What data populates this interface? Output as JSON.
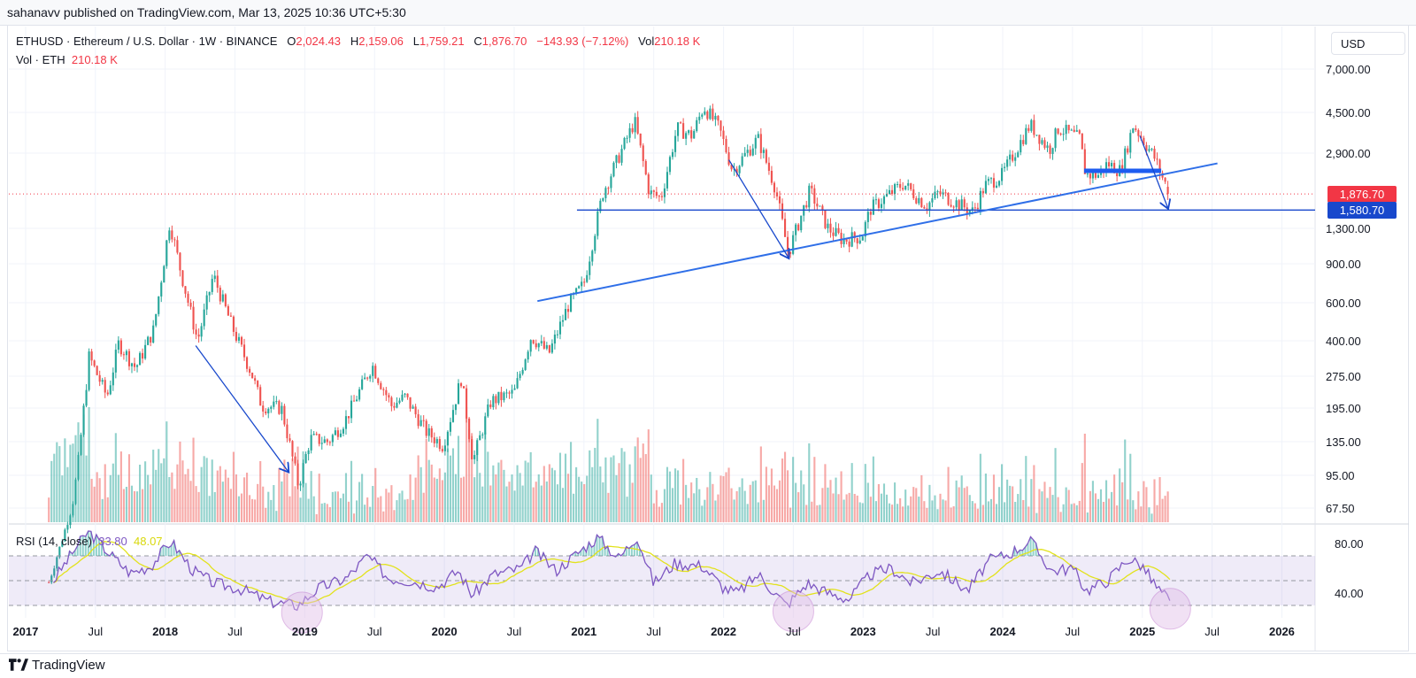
{
  "header": {
    "published_line": "sahanavv published on TradingView.com, Mar 13, 2025 10:36 UTC+5:30"
  },
  "legend": {
    "symbol": "ETHUSD · Ethereum / U.S. Dollar · 1W · BINANCE",
    "o_label": "O",
    "o_value": "2,024.43",
    "h_label": "H",
    "h_value": "2,159.06",
    "l_label": "L",
    "l_value": "1,759.21",
    "c_label": "C",
    "c_value": "1,876.70",
    "change": "−143.93 (−7.12%)",
    "vol_label": "Vol",
    "vol_value": "210.18 K",
    "vol_line_label": "Vol · ETH",
    "vol_line_value": "210.18 K"
  },
  "rsi_legend": {
    "label": "RSI (14, close)",
    "value": "33.80",
    "ma_value": "48.07"
  },
  "currency": "USD",
  "price_badges": {
    "last": "1,876.70",
    "level": "1,580.70"
  },
  "footer": {
    "brand": "TradingView"
  },
  "colors": {
    "up": "#26a69a",
    "down": "#ef5350",
    "trend": "#2962ff",
    "level": "#1848cc",
    "rsi": "#7e57c2",
    "rsi_ma": "#e2e21c",
    "badge_last": "#f23645",
    "badge_level": "#1848cc"
  },
  "chart_data": [
    {
      "type": "candlestick",
      "title": "ETHUSD · Ethereum / U.S. Dollar · 1W · BINANCE",
      "scale": "log",
      "y_ticks": [
        "7,000.00",
        "4,500.00",
        "2,900.00",
        "1,300.00",
        "900.00",
        "600.00",
        "400.00",
        "275.00",
        "195.00",
        "135.00",
        "95.00",
        "67.50"
      ],
      "x_ticks": [
        "2017",
        "Jul",
        "2018",
        "Jul",
        "2019",
        "Jul",
        "2020",
        "Jul",
        "2021",
        "Jul",
        "2022",
        "Jul",
        "2023",
        "Jul",
        "2024",
        "Jul",
        "2025",
        "Jul",
        "2026"
      ],
      "series": [
        {
          "name": "ETHUSD",
          "anchors": [
            [
              "2017-03-01",
              15
            ],
            [
              "2017-05-15",
              100
            ],
            [
              "2017-06-15",
              340
            ],
            [
              "2017-08-01",
              220
            ],
            [
              "2017-09-01",
              390
            ],
            [
              "2017-10-15",
              300
            ],
            [
              "2017-12-01",
              450
            ],
            [
              "2018-01-13",
              1400
            ],
            [
              "2018-02-10",
              850
            ],
            [
              "2018-03-25",
              400
            ],
            [
              "2018-05-05",
              800
            ],
            [
              "2018-06-25",
              460
            ],
            [
              "2018-08-15",
              280
            ],
            [
              "2018-09-10",
              200
            ],
            [
              "2018-11-01",
              195
            ],
            [
              "2018-12-15",
              85
            ],
            [
              "2019-01-15",
              140
            ],
            [
              "2019-03-01",
              135
            ],
            [
              "2019-04-15",
              170
            ],
            [
              "2019-06-25",
              310
            ],
            [
              "2019-08-15",
              200
            ],
            [
              "2019-09-20",
              220
            ],
            [
              "2019-11-15",
              150
            ],
            [
              "2019-12-28",
              130
            ],
            [
              "2020-02-15",
              270
            ],
            [
              "2020-03-15",
              110
            ],
            [
              "2020-05-01",
              210
            ],
            [
              "2020-07-01",
              230
            ],
            [
              "2020-08-15",
              420
            ],
            [
              "2020-10-01",
              350
            ],
            [
              "2020-11-20",
              580
            ],
            [
              "2020-12-31",
              730
            ],
            [
              "2021-02-20",
              1900
            ],
            [
              "2021-05-12",
              4100
            ],
            [
              "2021-06-20",
              1900
            ],
            [
              "2021-07-20",
              1800
            ],
            [
              "2021-09-01",
              3800
            ],
            [
              "2021-10-10",
              3500
            ],
            [
              "2021-11-10",
              4800
            ],
            [
              "2021-12-20",
              3800
            ],
            [
              "2022-01-25",
              2400
            ],
            [
              "2022-03-30",
              3400
            ],
            [
              "2022-05-15",
              2000
            ],
            [
              "2022-06-18",
              1000
            ],
            [
              "2022-08-14",
              1950
            ],
            [
              "2022-10-01",
              1300
            ],
            [
              "2022-11-10",
              1150
            ],
            [
              "2022-12-28",
              1200
            ],
            [
              "2023-01-20",
              1600
            ],
            [
              "2023-04-15",
              2100
            ],
            [
              "2023-06-15",
              1650
            ],
            [
              "2023-07-15",
              1900
            ],
            [
              "2023-10-15",
              1550
            ],
            [
              "2023-11-15",
              2050
            ],
            [
              "2023-12-30",
              2300
            ],
            [
              "2024-03-12",
              3950
            ],
            [
              "2024-05-01",
              3000
            ],
            [
              "2024-05-25",
              3800
            ],
            [
              "2024-07-20",
              3400
            ],
            [
              "2024-08-05",
              2300
            ],
            [
              "2024-09-10",
              2300
            ],
            [
              "2024-10-01",
              2600
            ],
            [
              "2024-11-05",
              2400
            ],
            [
              "2024-12-08",
              3950
            ],
            [
              "2025-01-10",
              3200
            ],
            [
              "2025-02-01",
              2800
            ],
            [
              "2025-02-25",
              2200
            ],
            [
              "2025-03-13",
              1876.7
            ]
          ]
        }
      ],
      "last_close": 1876.7,
      "horizontal_level": 1580.7,
      "annotations": [
        {
          "kind": "trendline",
          "from": [
            "2020-09-01",
            610
          ],
          "to": [
            "2025-07-15",
            2600
          ]
        },
        {
          "kind": "segment",
          "from": [
            "2024-08-01",
            2400
          ],
          "to": [
            "2025-02-20",
            2400
          ]
        },
        {
          "kind": "arrow",
          "from": [
            "2018-03-20",
            380
          ],
          "to": [
            "2018-11-20",
            98
          ]
        },
        {
          "kind": "arrow",
          "from": [
            "2022-01-15",
            2700
          ],
          "to": [
            "2022-06-20",
            950
          ]
        },
        {
          "kind": "arrow",
          "from": [
            "2024-12-25",
            3500
          ],
          "to": [
            "2025-03-08",
            1600
          ]
        }
      ]
    },
    {
      "type": "bar",
      "title": "Vol · ETH",
      "series": [
        {
          "name": "Vol · ETH",
          "last": "210.18 K"
        }
      ]
    },
    {
      "type": "line",
      "title": "RSI (14, close)",
      "y_ticks": [
        "80.00",
        "40.00"
      ],
      "levels": [
        70,
        50,
        30
      ],
      "series": [
        {
          "name": "RSI",
          "last": 33.8,
          "anchors": [
            [
              2017.2,
              50
            ],
            [
              2017.35,
              75
            ],
            [
              2017.45,
              90
            ],
            [
              2017.6,
              72
            ],
            [
              2017.75,
              56
            ],
            [
              2017.9,
              62
            ],
            [
              2018.04,
              82
            ],
            [
              2018.2,
              58
            ],
            [
              2018.35,
              48
            ],
            [
              2018.55,
              43
            ],
            [
              2018.75,
              33
            ],
            [
              2018.95,
              30
            ],
            [
              2019.1,
              44
            ],
            [
              2019.3,
              52
            ],
            [
              2019.45,
              70
            ],
            [
              2019.6,
              52
            ],
            [
              2019.75,
              50
            ],
            [
              2019.95,
              45
            ],
            [
              2020.1,
              58
            ],
            [
              2020.2,
              38
            ],
            [
              2020.35,
              55
            ],
            [
              2020.55,
              60
            ],
            [
              2020.65,
              74
            ],
            [
              2020.8,
              58
            ],
            [
              2020.95,
              72
            ],
            [
              2021.1,
              85
            ],
            [
              2021.25,
              68
            ],
            [
              2021.38,
              86
            ],
            [
              2021.5,
              48
            ],
            [
              2021.65,
              64
            ],
            [
              2021.85,
              62
            ],
            [
              2022.0,
              44
            ],
            [
              2022.1,
              40
            ],
            [
              2022.25,
              55
            ],
            [
              2022.45,
              30
            ],
            [
              2022.6,
              48
            ],
            [
              2022.75,
              40
            ],
            [
              2022.9,
              35
            ],
            [
              2023.05,
              55
            ],
            [
              2023.2,
              60
            ],
            [
              2023.35,
              48
            ],
            [
              2023.55,
              58
            ],
            [
              2023.75,
              42
            ],
            [
              2023.9,
              66
            ],
            [
              2024.05,
              72
            ],
            [
              2024.2,
              82
            ],
            [
              2024.35,
              58
            ],
            [
              2024.5,
              60
            ],
            [
              2024.6,
              42
            ],
            [
              2024.75,
              50
            ],
            [
              2024.9,
              68
            ],
            [
              2025.0,
              62
            ],
            [
              2025.1,
              45
            ],
            [
              2025.2,
              33.8
            ]
          ]
        },
        {
          "name": "RSI-MA",
          "last": 48.07
        }
      ]
    }
  ]
}
